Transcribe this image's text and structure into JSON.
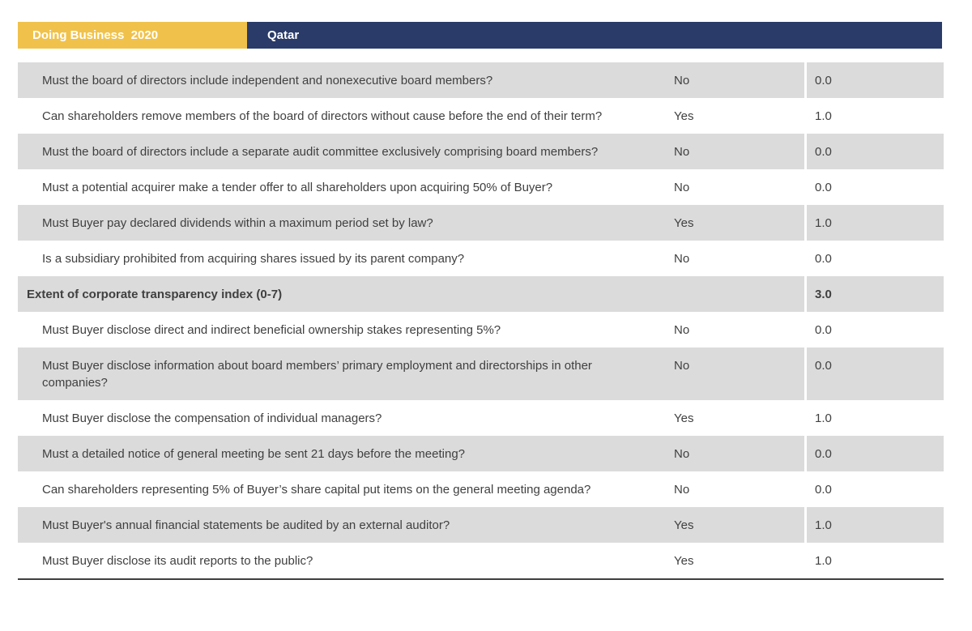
{
  "header": {
    "report_label": "Doing Business  2020",
    "location_label": "Qatar"
  },
  "colors": {
    "gold": "#F0C24B",
    "navy": "#2A3B69",
    "row_gray": "#DBDBDB",
    "text": "#404040",
    "bottom_line": "#3F3F3F"
  },
  "table": {
    "columns": [
      "question",
      "answer",
      "score"
    ],
    "rows": [
      {
        "type": "question",
        "text": "Must the board of directors include independent and nonexecutive board members?",
        "answer": "No",
        "score": "0.0"
      },
      {
        "type": "question",
        "text": "Can shareholders remove members of the board of directors without cause before the end of their term?",
        "answer": "Yes",
        "score": "1.0"
      },
      {
        "type": "question",
        "text": "Must the board of directors include a separate audit committee exclusively comprising board members?",
        "answer": "No",
        "score": "0.0"
      },
      {
        "type": "question",
        "text": "Must a potential acquirer make a tender offer to all shareholders upon acquiring 50% of Buyer?",
        "answer": "No",
        "score": "0.0"
      },
      {
        "type": "question",
        "text": "Must Buyer pay declared dividends within a maximum period set by law?",
        "answer": "Yes",
        "score": "1.0"
      },
      {
        "type": "question",
        "text": "Is a subsidiary prohibited from acquiring shares issued by its parent company?",
        "answer": "No",
        "score": "0.0"
      },
      {
        "type": "section",
        "text": "Extent of corporate transparency index (0-7)",
        "answer": "",
        "score": "3.0"
      },
      {
        "type": "question",
        "text": "Must Buyer disclose direct and indirect beneficial ownership stakes representing 5%?",
        "answer": "No",
        "score": "0.0"
      },
      {
        "type": "question",
        "text": "Must Buyer disclose information about board members’ primary employment and directorships in other companies?",
        "answer": "No",
        "score": "0.0"
      },
      {
        "type": "question",
        "text": "Must Buyer disclose the compensation of individual managers?",
        "answer": "Yes",
        "score": "1.0"
      },
      {
        "type": "question",
        "text": "Must a detailed notice of general meeting be sent 21 days before the meeting?",
        "answer": "No",
        "score": "0.0"
      },
      {
        "type": "question",
        "text": "Can shareholders representing 5% of Buyer’s share capital put items on the general meeting agenda?",
        "answer": "No",
        "score": "0.0"
      },
      {
        "type": "question",
        "text": "Must Buyer's annual financial statements be audited by an external auditor?",
        "answer": "Yes",
        "score": "1.0"
      },
      {
        "type": "question",
        "text": "Must Buyer disclose its audit reports to the public?",
        "answer": "Yes",
        "score": "1.0"
      }
    ]
  }
}
